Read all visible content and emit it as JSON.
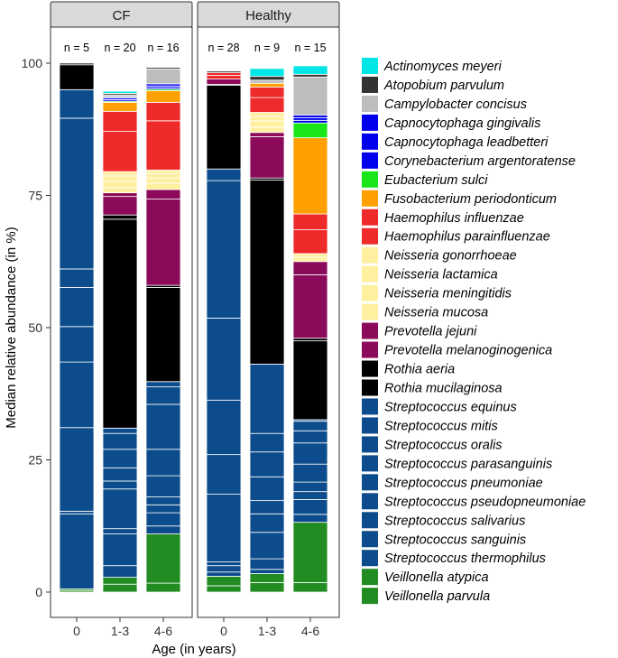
{
  "chart_data": {
    "type": "bar",
    "stacked": true,
    "ylabel": "Median relative abundance (in %)",
    "xlabel": "Age (in years)",
    "ylim": [
      0,
      100
    ],
    "yticks": [
      0,
      25,
      50,
      75,
      100
    ],
    "legend_position": "right",
    "panels": [
      {
        "title": "CF",
        "groups": [
          {
            "category": "0",
            "n_label": "n = 5",
            "segments": [
              {
                "species": "Veillonella parvula",
                "value": 0.3
              },
              {
                "species": "Veillonella atypica",
                "value": 0.3
              },
              {
                "species": "Streptococcus thermophilus",
                "value": 14.2
              },
              {
                "species": "Streptococcus sanguinis",
                "value": 0.5
              },
              {
                "species": "Streptococcus salivarius",
                "value": 15.8
              },
              {
                "species": "Streptococcus pseudopneumoniae",
                "value": 12.4
              },
              {
                "species": "Streptococcus pneumoniae",
                "value": 6.7
              },
              {
                "species": "Streptococcus parasanguinis",
                "value": 7.4
              },
              {
                "species": "Streptococcus oralis",
                "value": 3.5
              },
              {
                "species": "Streptococcus mitis",
                "value": 28.5
              },
              {
                "species": "Streptococcus equinus",
                "value": 5.4
              },
              {
                "species": "Rothia mucilaginosa",
                "value": 4.7
              },
              {
                "species": "Rothia aeria",
                "value": 0.3
              }
            ]
          },
          {
            "category": "1-3",
            "n_label": "n = 20",
            "segments": [
              {
                "species": "Veillonella parvula",
                "value": 1.5
              },
              {
                "species": "Veillonella atypica",
                "value": 1.3
              },
              {
                "species": "Streptococcus thermophilus",
                "value": 2.2
              },
              {
                "species": "Streptococcus sanguinis",
                "value": 6.0
              },
              {
                "species": "Streptococcus salivarius",
                "value": 1.0
              },
              {
                "species": "Streptococcus pseudopneumoniae",
                "value": 7.5
              },
              {
                "species": "Streptococcus pneumoniae",
                "value": 1.5
              },
              {
                "species": "Streptococcus parasanguinis",
                "value": 2.5
              },
              {
                "species": "Streptococcus oralis",
                "value": 3.5
              },
              {
                "species": "Streptococcus mitis",
                "value": 3.0
              },
              {
                "species": "Streptococcus equinus",
                "value": 1.0
              },
              {
                "species": "Rothia mucilaginosa",
                "value": 39.5
              },
              {
                "species": "Rothia aeria",
                "value": 0.8
              },
              {
                "species": "Prevotella melanoginogenica",
                "value": 3.5
              },
              {
                "species": "Prevotella jejuni",
                "value": 0.7
              },
              {
                "species": "Neisseria mucosa",
                "value": 1.0
              },
              {
                "species": "Neisseria meningitidis",
                "value": 1.2
              },
              {
                "species": "Neisseria lactamica",
                "value": 1.0
              },
              {
                "species": "Neisseria gonorrhoeae",
                "value": 0.8
              },
              {
                "species": "Haemophilus parainfluenzae",
                "value": 7.6
              },
              {
                "species": "Haemophilus influenzae",
                "value": 3.8
              },
              {
                "species": "Fusobacterium periodonticum",
                "value": 1.7
              },
              {
                "species": "Eubacterium sulci",
                "value": 0.2
              },
              {
                "species": "Corynebacterium argentoratense",
                "value": 0.3
              },
              {
                "species": "Capnocytophaga leadbetteri",
                "value": 0.3
              },
              {
                "species": "Capnocytophaga gingivalis",
                "value": 0.2
              },
              {
                "species": "Campylobacter concisus",
                "value": 0.4
              },
              {
                "species": "Atopobium parvulum",
                "value": 0.3
              },
              {
                "species": "Actinomyces meyeri",
                "value": 0.4
              }
            ]
          },
          {
            "category": "4-6",
            "n_label": "n = 16",
            "segments": [
              {
                "species": "Veillonella parvula",
                "value": 1.7
              },
              {
                "species": "Veillonella atypica",
                "value": 9.3
              },
              {
                "species": "Streptococcus thermophilus",
                "value": 1.5
              },
              {
                "species": "Streptococcus sanguinis",
                "value": 2.5
              },
              {
                "species": "Streptococcus salivarius",
                "value": 1.5
              },
              {
                "species": "Streptococcus pseudopneumoniae",
                "value": 1.5
              },
              {
                "species": "Streptococcus pneumoniae",
                "value": 4.0
              },
              {
                "species": "Streptococcus parasanguinis",
                "value": 5.0
              },
              {
                "species": "Streptococcus oralis",
                "value": 8.5
              },
              {
                "species": "Streptococcus mitis",
                "value": 3.3
              },
              {
                "species": "Streptococcus equinus",
                "value": 1.0
              },
              {
                "species": "Rothia mucilaginosa",
                "value": 17.8
              },
              {
                "species": "Rothia aeria",
                "value": 0.4
              },
              {
                "species": "Prevotella melanoginogenica",
                "value": 16.3
              },
              {
                "species": "Prevotella jejuni",
                "value": 1.8
              },
              {
                "species": "Neisseria mucosa",
                "value": 1.2
              },
              {
                "species": "Neisseria meningitidis",
                "value": 1.0
              },
              {
                "species": "Neisseria lactamica",
                "value": 0.8
              },
              {
                "species": "Neisseria gonorrhoeae",
                "value": 0.7
              },
              {
                "species": "Haemophilus parainfluenzae",
                "value": 9.3
              },
              {
                "species": "Haemophilus influenzae",
                "value": 3.5
              },
              {
                "species": "Fusobacterium periodonticum",
                "value": 2.2
              },
              {
                "species": "Eubacterium sulci",
                "value": 0.3
              },
              {
                "species": "Corynebacterium argentoratense",
                "value": 0.3
              },
              {
                "species": "Capnocytophaga leadbetteri",
                "value": 0.3
              },
              {
                "species": "Capnocytophaga gingivalis",
                "value": 0.4
              },
              {
                "species": "Campylobacter concisus",
                "value": 2.8
              },
              {
                "species": "Atopobium parvulum",
                "value": 0.3
              }
            ]
          }
        ]
      },
      {
        "title": "Healthy",
        "groups": [
          {
            "category": "0",
            "n_label": "n = 28",
            "segments": [
              {
                "species": "Veillonella parvula",
                "value": 1.2
              },
              {
                "species": "Veillonella atypica",
                "value": 1.8
              },
              {
                "species": "Streptococcus thermophilus",
                "value": 0.8
              },
              {
                "species": "Streptococcus sanguinis",
                "value": 1.2
              },
              {
                "species": "Streptococcus salivarius",
                "value": 0.7
              },
              {
                "species": "Streptococcus pseudopneumoniae",
                "value": 12.8
              },
              {
                "species": "Streptococcus pneumoniae",
                "value": 7.5
              },
              {
                "species": "Streptococcus parasanguinis",
                "value": 10.3
              },
              {
                "species": "Streptococcus oralis",
                "value": 15.5
              },
              {
                "species": "Streptococcus mitis",
                "value": 26.0
              },
              {
                "species": "Streptococcus equinus",
                "value": 2.2
              },
              {
                "species": "Rothia mucilaginosa",
                "value": 15.8
              },
              {
                "species": "Rothia aeria",
                "value": 0.2
              },
              {
                "species": "Prevotella jejuni",
                "value": 1.0
              },
              {
                "species": "Haemophilus parainfluenzae",
                "value": 0.7
              },
              {
                "species": "Haemophilus influenzae",
                "value": 0.5
              },
              {
                "species": "Atopobium parvulum",
                "value": 0.3
              }
            ]
          },
          {
            "category": "1-3",
            "n_label": "n = 9",
            "segments": [
              {
                "species": "Veillonella parvula",
                "value": 1.8
              },
              {
                "species": "Veillonella atypica",
                "value": 1.7
              },
              {
                "species": "Streptococcus thermophilus",
                "value": 0.8
              },
              {
                "species": "Streptococcus sanguinis",
                "value": 2.0
              },
              {
                "species": "Streptococcus salivarius",
                "value": 5.0
              },
              {
                "species": "Streptococcus pseudopneumoniae",
                "value": 3.5
              },
              {
                "species": "Streptococcus pneumoniae",
                "value": 2.5
              },
              {
                "species": "Streptococcus parasanguinis",
                "value": 4.5
              },
              {
                "species": "Streptococcus oralis",
                "value": 4.7
              },
              {
                "species": "Streptococcus mitis",
                "value": 3.5
              },
              {
                "species": "Streptococcus equinus",
                "value": 13.1
              },
              {
                "species": "Rothia mucilaginosa",
                "value": 34.8
              },
              {
                "species": "Rothia aeria",
                "value": 0.4
              },
              {
                "species": "Prevotella melanoginogenica",
                "value": 7.8
              },
              {
                "species": "Prevotella jejuni",
                "value": 0.8
              },
              {
                "species": "Neisseria mucosa",
                "value": 1.0
              },
              {
                "species": "Neisseria meningitidis",
                "value": 1.2
              },
              {
                "species": "Neisseria lactamica",
                "value": 0.8
              },
              {
                "species": "Neisseria gonorrhoeae",
                "value": 0.8
              },
              {
                "species": "Haemophilus parainfluenzae",
                "value": 2.8
              },
              {
                "species": "Haemophilus influenzae",
                "value": 2.0
              },
              {
                "species": "Fusobacterium periodonticum",
                "value": 0.7
              },
              {
                "species": "Campylobacter concisus",
                "value": 0.6
              },
              {
                "species": "Atopobium parvulum",
                "value": 0.7
              },
              {
                "species": "Actinomyces meyeri",
                "value": 1.5
              }
            ]
          },
          {
            "category": "4-6",
            "n_label": "n = 15",
            "segments": [
              {
                "species": "Veillonella parvula",
                "value": 1.8
              },
              {
                "species": "Veillonella atypica",
                "value": 11.4
              },
              {
                "species": "Streptococcus thermophilus",
                "value": 1.5
              },
              {
                "species": "Streptococcus sanguinis",
                "value": 2.8
              },
              {
                "species": "Streptococcus salivarius",
                "value": 1.5
              },
              {
                "species": "Streptococcus pseudopneumoniae",
                "value": 1.8
              },
              {
                "species": "Streptococcus pneumoniae",
                "value": 3.4
              },
              {
                "species": "Streptococcus parasanguinis",
                "value": 4.0
              },
              {
                "species": "Streptococcus oralis",
                "value": 2.3
              },
              {
                "species": "Streptococcus mitis",
                "value": 1.8
              },
              {
                "species": "Streptococcus equinus",
                "value": 0.3
              },
              {
                "species": "Rothia mucilaginosa",
                "value": 14.9
              },
              {
                "species": "Rothia aeria",
                "value": 0.5
              },
              {
                "species": "Prevotella melanoginogenica",
                "value": 12.0
              },
              {
                "species": "Prevotella jejuni",
                "value": 2.5
              },
              {
                "species": "Neisseria mucosa",
                "value": 0.8
              },
              {
                "species": "Neisseria meningitidis",
                "value": 0.7
              },
              {
                "species": "Haemophilus parainfluenzae",
                "value": 4.5
              },
              {
                "species": "Haemophilus influenzae",
                "value": 3.0
              },
              {
                "species": "Fusobacterium periodonticum",
                "value": 14.4
              },
              {
                "species": "Eubacterium sulci",
                "value": 2.8
              },
              {
                "species": "Corynebacterium argentoratense",
                "value": 0.5
              },
              {
                "species": "Capnocytophaga leadbetteri",
                "value": 0.5
              },
              {
                "species": "Capnocytophaga gingivalis",
                "value": 0.5
              },
              {
                "species": "Campylobacter concisus",
                "value": 7.2
              },
              {
                "species": "Atopobium parvulum",
                "value": 0.5
              },
              {
                "species": "Actinomyces meyeri",
                "value": 1.6
              }
            ]
          }
        ]
      }
    ],
    "legend": [
      {
        "name": "Actinomyces meyeri",
        "color": "#00e5e5"
      },
      {
        "name": "Atopobium parvulum",
        "color": "#333333"
      },
      {
        "name": "Campylobacter concisus",
        "color": "#bdbdbd"
      },
      {
        "name": "Capnocytophaga gingivalis",
        "color": "#0000ee"
      },
      {
        "name": "Capnocytophaga leadbetteri",
        "color": "#0000ee"
      },
      {
        "name": "Corynebacterium argentoratense",
        "color": "#0000ee"
      },
      {
        "name": "Eubacterium sulci",
        "color": "#19e619"
      },
      {
        "name": "Fusobacterium periodonticum",
        "color": "#ffa000"
      },
      {
        "name": "Haemophilus influenzae",
        "color": "#ee2a2a"
      },
      {
        "name": "Haemophilus parainfluenzae",
        "color": "#ee2a2a"
      },
      {
        "name": "Neisseria gonorrhoeae",
        "color": "#fff0a0"
      },
      {
        "name": "Neisseria lactamica",
        "color": "#fff0a0"
      },
      {
        "name": "Neisseria meningitidis",
        "color": "#fff0a0"
      },
      {
        "name": "Neisseria mucosa",
        "color": "#fff0a0"
      },
      {
        "name": "Prevotella jejuni",
        "color": "#8b0b5a"
      },
      {
        "name": "Prevotella melanoginogenica",
        "color": "#8b0b5a"
      },
      {
        "name": "Rothia aeria",
        "color": "#000000"
      },
      {
        "name": "Rothia mucilaginosa",
        "color": "#000000"
      },
      {
        "name": "Streptococcus equinus",
        "color": "#0d4c8c"
      },
      {
        "name": "Streptococcus mitis",
        "color": "#0d4c8c"
      },
      {
        "name": "Streptococcus oralis",
        "color": "#0d4c8c"
      },
      {
        "name": "Streptococcus parasanguinis",
        "color": "#0d4c8c"
      },
      {
        "name": "Streptococcus pneumoniae",
        "color": "#0d4c8c"
      },
      {
        "name": "Streptococcus pseudopneumoniae",
        "color": "#0d4c8c"
      },
      {
        "name": "Streptococcus salivarius",
        "color": "#0d4c8c"
      },
      {
        "name": "Streptococcus sanguinis",
        "color": "#0d4c8c"
      },
      {
        "name": "Streptococcus thermophilus",
        "color": "#0d4c8c"
      },
      {
        "name": "Veillonella atypica",
        "color": "#228b22"
      },
      {
        "name": "Veillonella parvula",
        "color": "#228b22"
      }
    ]
  }
}
